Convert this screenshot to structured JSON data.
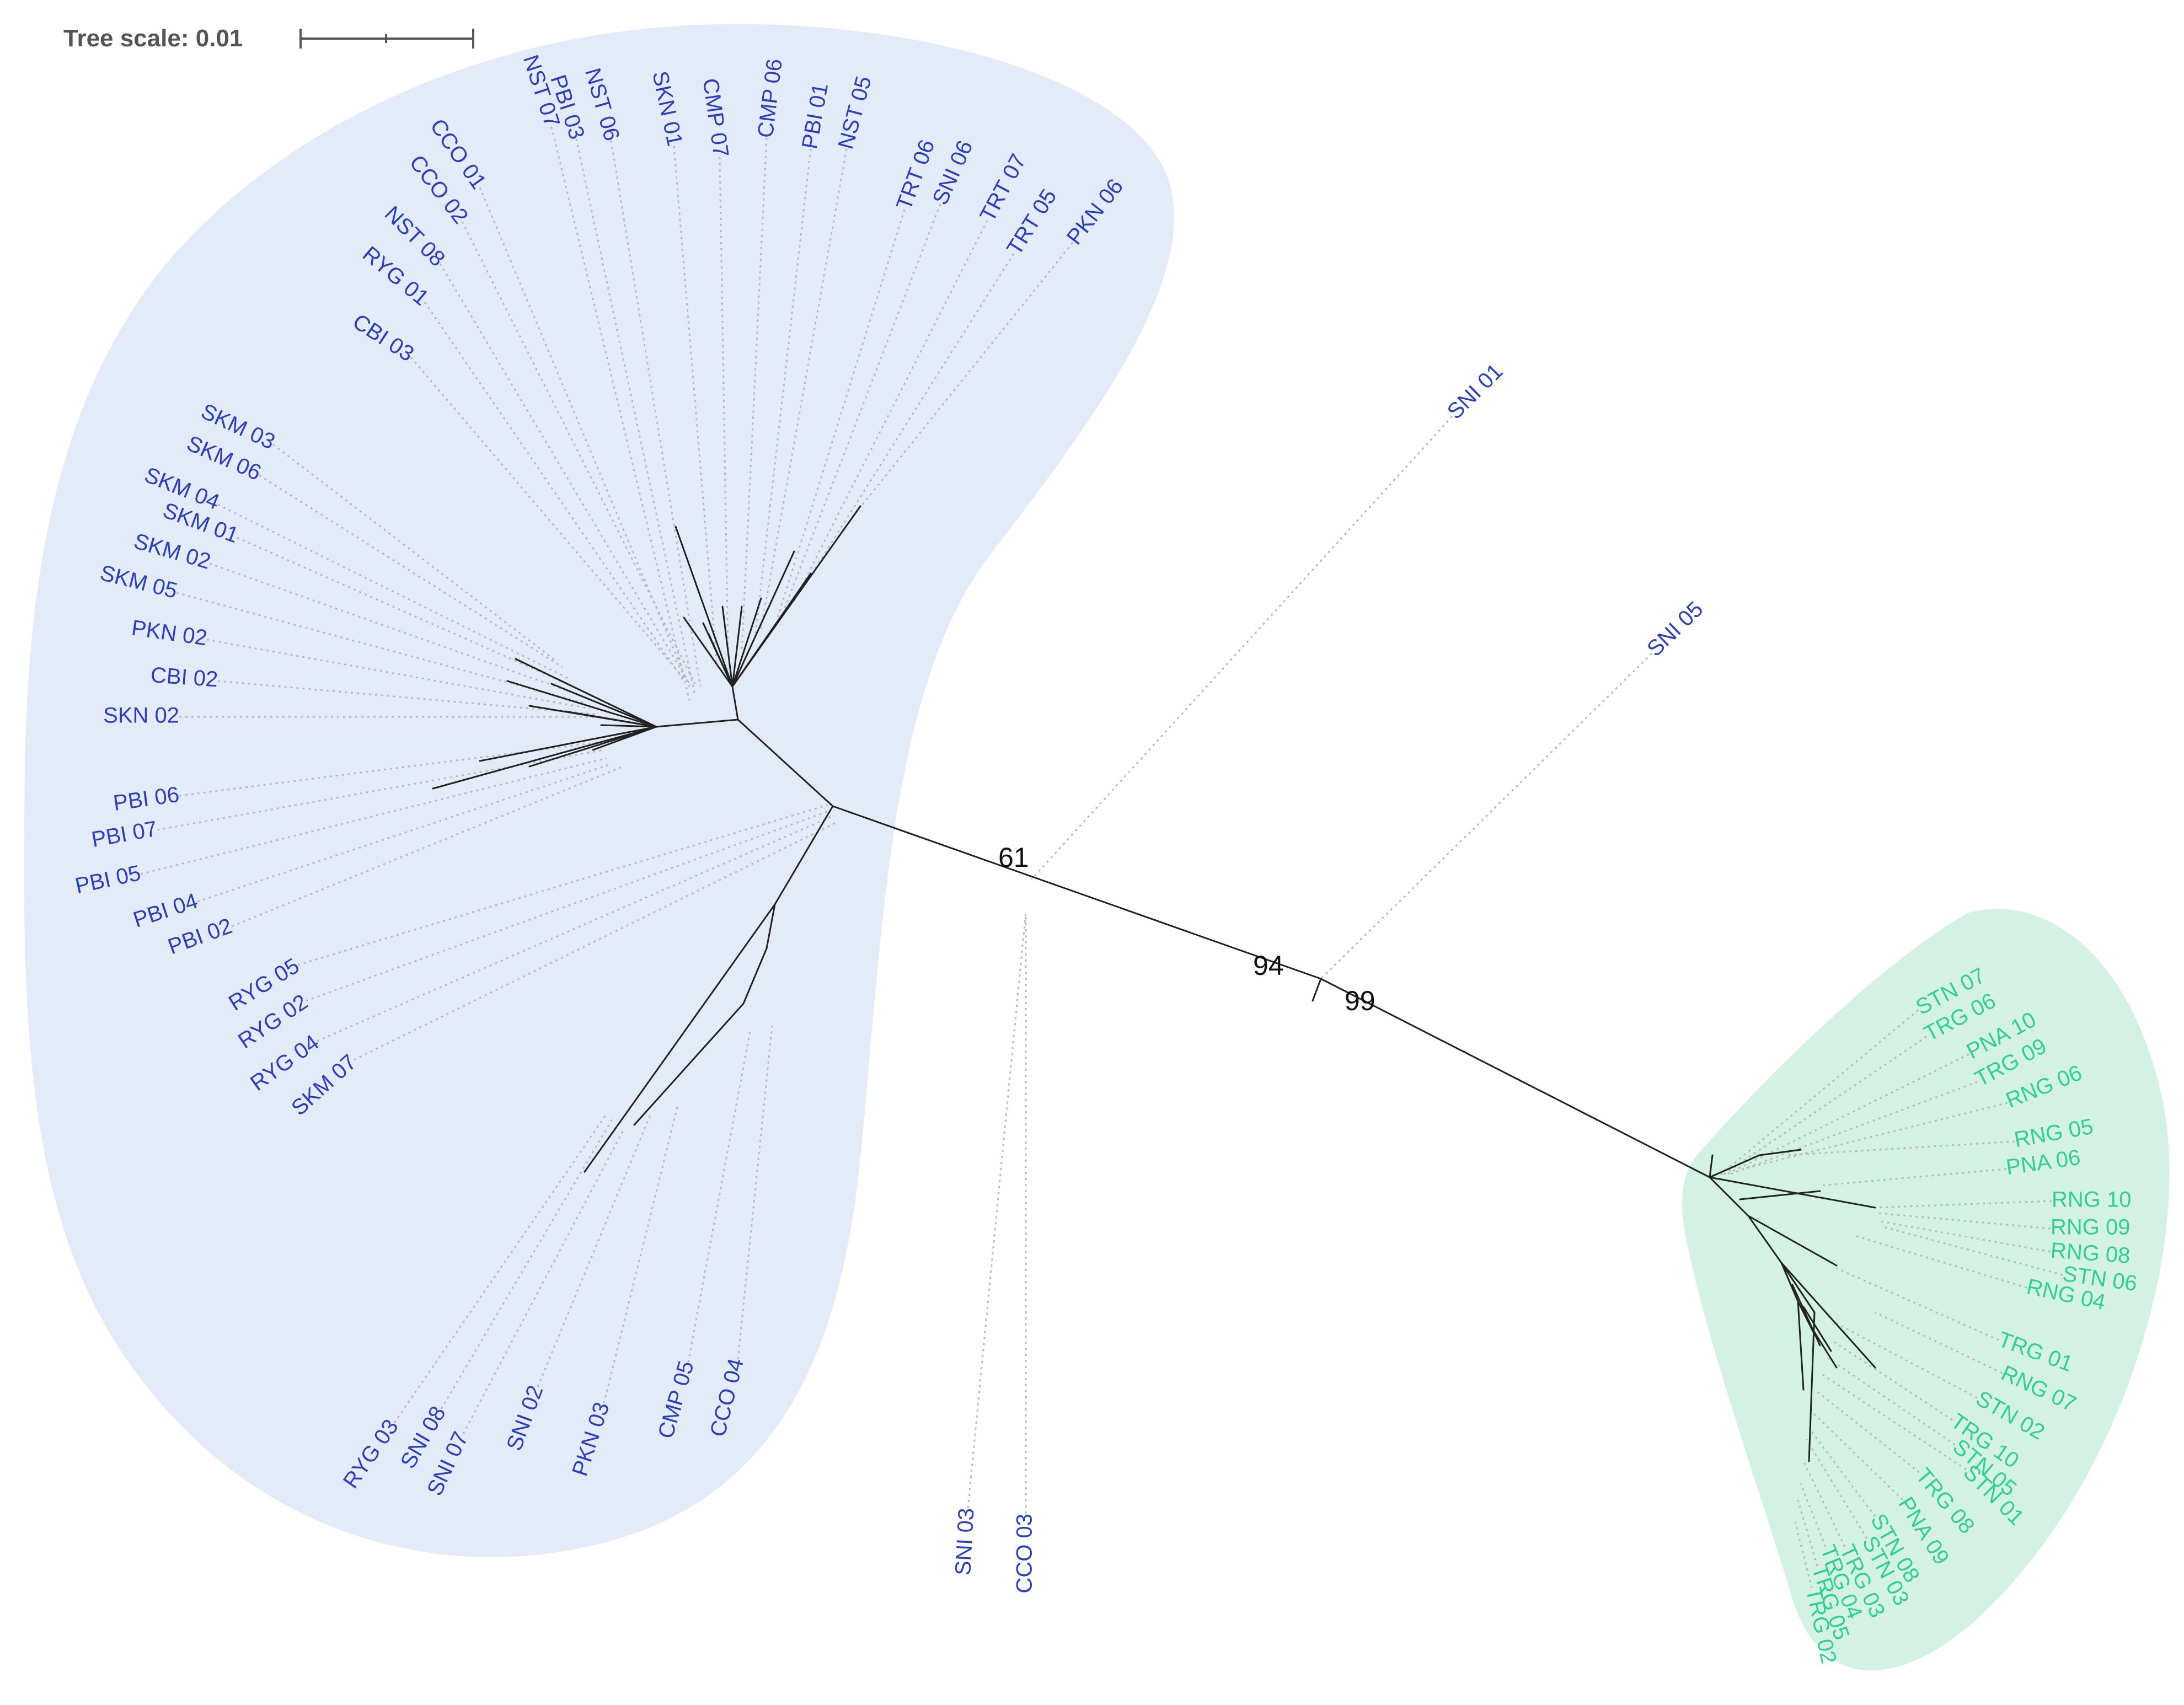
{
  "scale_bar": {
    "label": "Tree scale: 0.01",
    "value": 0.01
  },
  "colors": {
    "clade_a_fill": "#e3ebf8",
    "clade_a_text": "#2c3fb8",
    "clade_b_fill": "#d3f2e4",
    "clade_b_text": "#2fcf96",
    "branch": "#222222",
    "leader": "#b8b8b8"
  },
  "support_values": [
    "61",
    "94",
    "99"
  ],
  "clades": {
    "blue": {
      "color_key": "clade_a_text",
      "labels": [
        "NST 07",
        "PBI 03",
        "NST 06",
        "SKN 01",
        "CMP 07",
        "CMP 06",
        "PBI 01",
        "NST 05",
        "TRT 06",
        "SNI 06",
        "TRT 07",
        "TRT 05",
        "PKN 06",
        "CCO 01",
        "CCO 02",
        "NST 08",
        "RYG 01",
        "CBI 03",
        "SKM 03",
        "SKM 06",
        "SKM 04",
        "SKM 01",
        "SKM 02",
        "SKM 05",
        "PKN 02",
        "CBI 02",
        "SKN 02",
        "PBI 06",
        "PBI 07",
        "PBI 05",
        "PBI 04",
        "PBI 02",
        "RYG 05",
        "RYG 02",
        "RYG 04",
        "SKM 07",
        "RYG 03",
        "SNI 08",
        "SNI 07",
        "SNI 02",
        "PKN 03",
        "CMP 05",
        "CCO 04"
      ]
    },
    "unclustered": {
      "color_key": "clade_a_text",
      "labels": [
        "SNI 01",
        "SNI 05",
        "SNI 03",
        "CCO 03"
      ]
    },
    "green": {
      "color_key": "clade_b_text",
      "labels": [
        "STN 07",
        "TRG 06",
        "PNA 10",
        "TRG 09",
        "RNG 06",
        "RNG 05",
        "PNA 06",
        "RNG 10",
        "RNG 09",
        "RNG 08",
        "STN 06",
        "RNG 04",
        "TRG 01",
        "RNG 07",
        "STN 02",
        "TRG 10",
        "STN 05",
        "STN 01",
        "TRG 08",
        "PNA 09",
        "STN 08",
        "STN 03",
        "TRG 03",
        "TRG 04",
        "TRG 05",
        "TRG 02"
      ]
    }
  }
}
